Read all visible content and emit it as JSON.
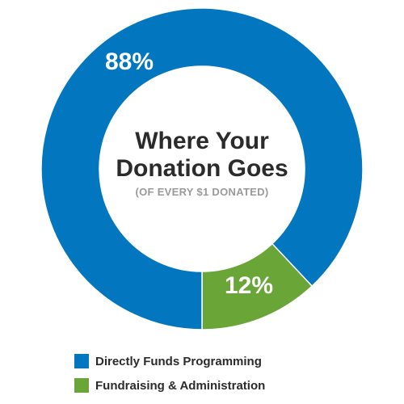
{
  "chart_data": {
    "type": "pie",
    "title": "Where Your Donation Goes",
    "subtitle": "(OF EVERY $1 DONATED)",
    "series": [
      {
        "name": "Directly Funds Programming",
        "value": 88,
        "label": "88%",
        "color": "#0277c0"
      },
      {
        "name": "Fundraising & Administration",
        "value": 12,
        "label": "12%",
        "color": "#6aa537"
      }
    ],
    "donut": true,
    "legend_position": "bottom-left"
  },
  "center": {
    "title_line1": "Where Your",
    "title_line2": "Donation Goes",
    "subtitle": "(OF EVERY $1 DONATED)"
  },
  "legend": {
    "items": [
      {
        "label": "Directly Funds Programming",
        "color": "#0277c0"
      },
      {
        "label": "Fundraising & Administration",
        "color": "#6aa537"
      }
    ]
  }
}
